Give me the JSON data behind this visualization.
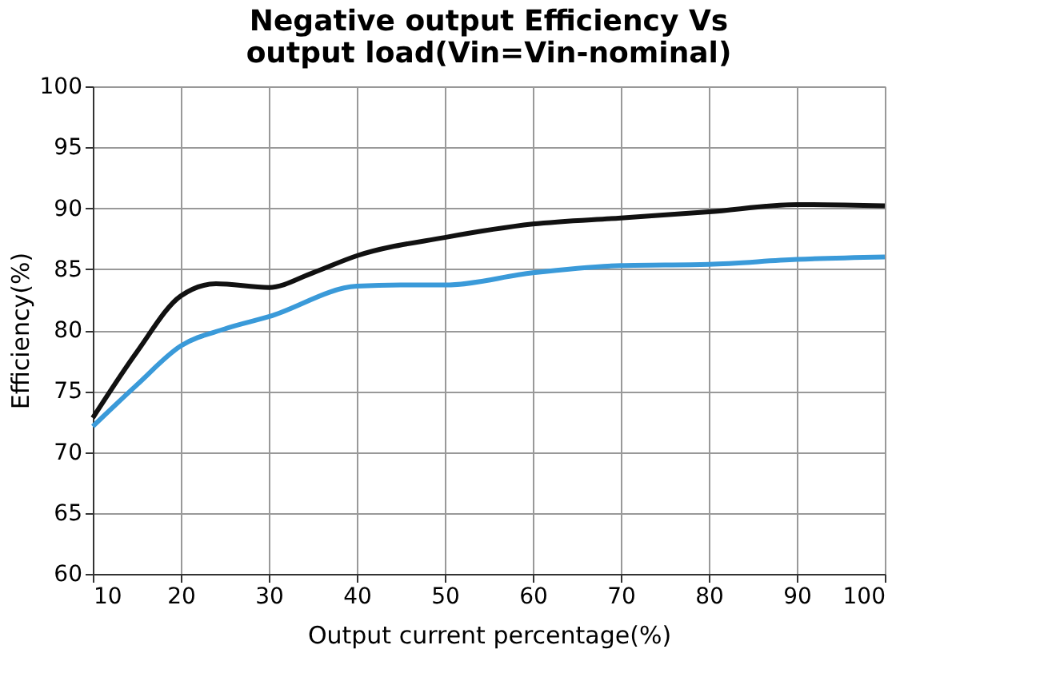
{
  "chart_data": {
    "type": "line",
    "title": "Negative output Efficiency Vs output load(Vin=Vin-nominal)",
    "xlabel": "Output current percentage(%)",
    "ylabel": "Efficiency(%)",
    "xlim": [
      10,
      100
    ],
    "xticks": [
      10,
      20,
      30,
      40,
      50,
      60,
      70,
      80,
      90,
      100
    ],
    "ylim": [
      60,
      100
    ],
    "yticks": [
      60,
      65,
      70,
      75,
      80,
      85,
      90,
      95,
      100
    ],
    "grid": true,
    "marker": "none",
    "line_style": "solid",
    "series": [
      {
        "color": "#111111",
        "x": [
          10,
          15,
          20,
          24,
          30,
          35,
          40,
          50,
          60,
          70,
          80,
          90,
          100
        ],
        "values": [
          72.8,
          78.2,
          82.8,
          83.8,
          83.5,
          84.7,
          86.1,
          87.6,
          88.7,
          89.2,
          89.7,
          90.3,
          90.2
        ]
      },
      {
        "color": "#3a9ad9",
        "x": [
          10,
          15,
          20,
          25,
          30,
          40,
          45,
          50,
          60,
          70,
          80,
          90,
          100
        ],
        "values": [
          72.1,
          75.5,
          78.7,
          80.1,
          81.1,
          83.6,
          83.7,
          83.7,
          84.7,
          85.3,
          85.4,
          85.8,
          86.0
        ]
      }
    ]
  }
}
